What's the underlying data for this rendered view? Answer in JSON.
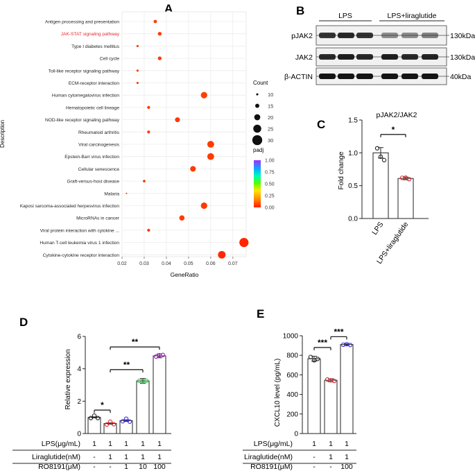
{
  "panels": {
    "A": "A",
    "B": "B",
    "C": "C",
    "D": "D",
    "E": "E"
  },
  "colors": {
    "highlight": "#e8262c",
    "dot_low": "#ff3b00",
    "bar_black": "#222222",
    "lps": "#222222",
    "lira": "#e0222b",
    "ro1": "#3a2fe0",
    "ro10": "#2ec84a",
    "ro100": "#a020c0"
  },
  "chart_data": [
    {
      "id": "A",
      "type": "scatter",
      "title": "",
      "xlabel": "GeneRatio",
      "ylabel": "Description",
      "xlim": [
        0.02,
        0.076
      ],
      "xticks": [
        "0.02",
        "0.03",
        "0.04",
        "0.05",
        "0.06",
        "0.07"
      ],
      "highlight_term": "JAK-STAT signaling pathway",
      "terms": [
        {
          "name": "Antigen processing and presentation",
          "gene_ratio": 0.035,
          "count": 13,
          "padj": 0.05
        },
        {
          "name": "JAK-STAT signaling pathway",
          "gene_ratio": 0.037,
          "count": 14,
          "padj": 0.05
        },
        {
          "name": "Type I diabetes mellitus",
          "gene_ratio": 0.027,
          "count": 10,
          "padj": 0.04
        },
        {
          "name": "Cell cycle",
          "gene_ratio": 0.037,
          "count": 14,
          "padj": 0.05
        },
        {
          "name": "Toll-like receptor signaling pathway",
          "gene_ratio": 0.027,
          "count": 10,
          "padj": 0.04
        },
        {
          "name": "ECM-receptor interaction",
          "gene_ratio": 0.027,
          "count": 10,
          "padj": 0.04
        },
        {
          "name": "Human cytomegalovirus infection",
          "gene_ratio": 0.057,
          "count": 21,
          "padj": 0.06
        },
        {
          "name": "Hematopoietic cell lineage",
          "gene_ratio": 0.032,
          "count": 12,
          "padj": 0.05
        },
        {
          "name": "NOD-like receptor signaling pathway",
          "gene_ratio": 0.045,
          "count": 17,
          "padj": 0.05
        },
        {
          "name": "Rheumatoid arthritis",
          "gene_ratio": 0.032,
          "count": 12,
          "padj": 0.05
        },
        {
          "name": "Viral carcinogenesis",
          "gene_ratio": 0.06,
          "count": 22,
          "padj": 0.05
        },
        {
          "name": "Epstein-Barr virus infection",
          "gene_ratio": 0.06,
          "count": 22,
          "padj": 0.05
        },
        {
          "name": "Cellular senescence",
          "gene_ratio": 0.052,
          "count": 19,
          "padj": 0.05
        },
        {
          "name": "Graft-versus-host disease",
          "gene_ratio": 0.03,
          "count": 11,
          "padj": 0.04
        },
        {
          "name": "Malaria",
          "gene_ratio": 0.022,
          "count": 8,
          "padj": 0.03
        },
        {
          "name": "Kaposi sarcoma-associated herpesvirus infection",
          "gene_ratio": 0.057,
          "count": 21,
          "padj": 0.05
        },
        {
          "name": "MicroRNAs in cancer",
          "gene_ratio": 0.047,
          "count": 18,
          "padj": 0.05
        },
        {
          "name": "Viral protein interaction with cytokine ...",
          "gene_ratio": 0.032,
          "count": 12,
          "padj": 0.05
        },
        {
          "name": "Human T-cell leukemia virus 1 infection",
          "gene_ratio": 0.075,
          "count": 28,
          "padj": 0.02
        },
        {
          "name": "Cytokine-cytokine receptor interaction",
          "gene_ratio": 0.065,
          "count": 24,
          "padj": 0.02
        }
      ],
      "size_legend": {
        "title": "Count",
        "values": [
          10,
          15,
          20,
          25,
          30
        ]
      },
      "color_legend": {
        "title": "padj",
        "ticks": [
          "1.00",
          "0.75",
          "0.50",
          "0.25",
          "0.00"
        ]
      }
    },
    {
      "id": "B",
      "type": "western_blot",
      "groups": [
        "LPS",
        "LPS+liraglutide"
      ],
      "rows": [
        {
          "label": "pJAK2",
          "size": "130kDa"
        },
        {
          "label": "JAK2",
          "size": "130kDa"
        },
        {
          "label": "β-ACTIN",
          "size": "40kDa"
        }
      ]
    },
    {
      "id": "C",
      "type": "bar",
      "title": "pJAK2/JAK2",
      "ylabel": "Fold change",
      "ylim": [
        0,
        1.5
      ],
      "yticks": [
        "0.0",
        "0.5",
        "1.0",
        "1.5"
      ],
      "categories": [
        "LPS",
        "LPS+liraglutide"
      ],
      "values": [
        1.0,
        0.61
      ],
      "errors": [
        0.08,
        0.02
      ],
      "points": [
        [
          1.08,
          0.92,
          0.9
        ],
        [
          0.63,
          0.6,
          0.61
        ]
      ],
      "significance": [
        {
          "label": "*"
        }
      ]
    },
    {
      "id": "D",
      "type": "bar",
      "ylabel": "Relative expression",
      "ylim": [
        0,
        6
      ],
      "yticks": [
        "0",
        "2",
        "4",
        "6"
      ],
      "values": [
        1.0,
        0.62,
        0.8,
        3.25,
        4.8
      ],
      "errors": [
        0.03,
        0.04,
        0.05,
        0.15,
        0.12
      ],
      "points": [
        [
          1.0,
          1.02,
          1.0
        ],
        [
          0.6,
          0.64,
          0.62
        ],
        [
          0.8,
          0.83,
          0.78
        ],
        [
          3.3,
          3.15,
          3.3
        ],
        [
          4.8,
          4.75,
          4.9
        ]
      ],
      "significance": [
        {
          "label": "*"
        },
        {
          "label": "**"
        },
        {
          "label": "**"
        }
      ],
      "condition_rows": [
        {
          "label": "LPS(μg/mL)",
          "values": [
            "1",
            "1",
            "1",
            "1",
            "1"
          ]
        },
        {
          "label": "Liraglutide(nM)",
          "values": [
            "-",
            "1",
            "1",
            "1",
            "1"
          ]
        },
        {
          "label": "RO8191(μM)",
          "values": [
            "-",
            "-",
            "1",
            "10",
            "100"
          ]
        }
      ]
    },
    {
      "id": "E",
      "type": "bar",
      "ylabel": "CXCL10 level (pg/mL)",
      "ylim": [
        0,
        1000
      ],
      "yticks": [
        "0",
        "200",
        "400",
        "600",
        "800",
        "1000"
      ],
      "values": [
        765,
        545,
        910
      ],
      "errors": [
        25,
        15,
        8
      ],
      "points": [
        [
          790,
          735,
          770
        ],
        [
          560,
          530,
          545
        ],
        [
          915,
          900,
          912
        ]
      ],
      "significance": [
        {
          "label": "***"
        },
        {
          "label": "***"
        }
      ],
      "condition_rows": [
        {
          "label": "LPS(μg/mL)",
          "values": [
            "1",
            "1",
            "1"
          ]
        },
        {
          "label": "Liraglutide(nM)",
          "values": [
            "-",
            "1",
            "1"
          ]
        },
        {
          "label": "RO8191(μM)",
          "values": [
            "-",
            "-",
            "100"
          ]
        }
      ]
    }
  ]
}
